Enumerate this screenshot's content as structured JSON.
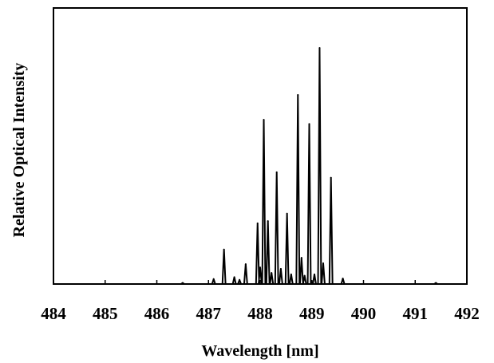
{
  "chart_data": {
    "type": "line",
    "title": "",
    "xlabel": "Wavelength [nm]",
    "ylabel": "Relative Optical Intensity",
    "xlim": [
      484,
      492
    ],
    "ylim": [
      0,
      1.0
    ],
    "xticks": [
      "484",
      "485",
      "486",
      "487",
      "488",
      "489",
      "490",
      "491",
      "492"
    ],
    "y_tick_labels_shown": false,
    "grid": false,
    "legend": "none",
    "line_color": "#000000",
    "series": [
      {
        "peaks": [
          {
            "x": 486.5,
            "y": 0.004
          },
          {
            "x": 487.1,
            "y": 0.018
          },
          {
            "x": 487.3,
            "y": 0.125
          },
          {
            "x": 487.5,
            "y": 0.025
          },
          {
            "x": 487.6,
            "y": 0.015
          },
          {
            "x": 487.72,
            "y": 0.072
          },
          {
            "x": 487.95,
            "y": 0.22
          },
          {
            "x": 488.0,
            "y": 0.06
          },
          {
            "x": 488.07,
            "y": 0.595
          },
          {
            "x": 488.15,
            "y": 0.228
          },
          {
            "x": 488.22,
            "y": 0.04
          },
          {
            "x": 488.32,
            "y": 0.405
          },
          {
            "x": 488.4,
            "y": 0.055
          },
          {
            "x": 488.52,
            "y": 0.255
          },
          {
            "x": 488.6,
            "y": 0.035
          },
          {
            "x": 488.73,
            "y": 0.685
          },
          {
            "x": 488.8,
            "y": 0.095
          },
          {
            "x": 488.86,
            "y": 0.03
          },
          {
            "x": 488.95,
            "y": 0.58
          },
          {
            "x": 489.05,
            "y": 0.035
          },
          {
            "x": 489.15,
            "y": 0.855
          },
          {
            "x": 489.22,
            "y": 0.075
          },
          {
            "x": 489.37,
            "y": 0.385
          },
          {
            "x": 489.6,
            "y": 0.02
          },
          {
            "x": 491.4,
            "y": 0.004
          }
        ]
      }
    ]
  }
}
